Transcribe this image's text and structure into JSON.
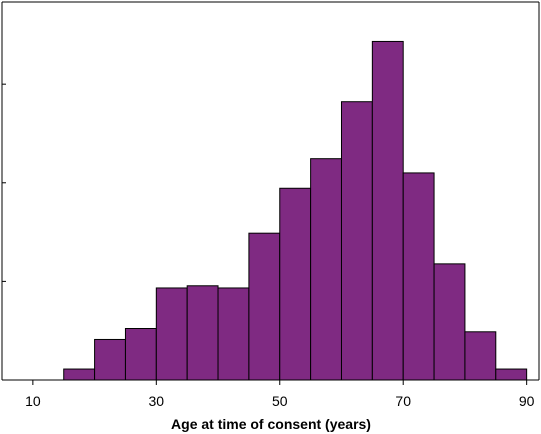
{
  "chart_data": {
    "type": "bar",
    "title": "",
    "xlabel": "Age at time of consent (years)",
    "ylabel": "",
    "bin_width": 5,
    "bins": [
      {
        "start": 15,
        "end": 20,
        "count": 10
      },
      {
        "start": 20,
        "end": 25,
        "count": 37
      },
      {
        "start": 25,
        "end": 30,
        "count": 47
      },
      {
        "start": 30,
        "end": 35,
        "count": 84
      },
      {
        "start": 35,
        "end": 40,
        "count": 86
      },
      {
        "start": 40,
        "end": 45,
        "count": 84
      },
      {
        "start": 45,
        "end": 50,
        "count": 134
      },
      {
        "start": 50,
        "end": 55,
        "count": 175
      },
      {
        "start": 55,
        "end": 60,
        "count": 202
      },
      {
        "start": 60,
        "end": 65,
        "count": 254
      },
      {
        "start": 65,
        "end": 70,
        "count": 309
      },
      {
        "start": 70,
        "end": 75,
        "count": 189
      },
      {
        "start": 75,
        "end": 80,
        "count": 106
      },
      {
        "start": 80,
        "end": 85,
        "count": 44
      },
      {
        "start": 85,
        "end": 90,
        "count": 10
      }
    ],
    "xlim": [
      5,
      92
    ],
    "ylim": [
      0,
      345
    ],
    "x_ticks": [
      "10",
      "30",
      "50",
      "70",
      "90"
    ],
    "x_tick_values": [
      10,
      30,
      50,
      70,
      90
    ],
    "y_tick_values": [
      0,
      90,
      180,
      270
    ],
    "bar_color": "#7f2a82",
    "bar_edge_color": "#000000",
    "grid": false
  }
}
